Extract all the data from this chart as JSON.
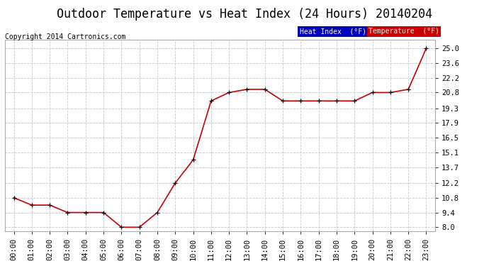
{
  "title": "Outdoor Temperature vs Heat Index (24 Hours) 20140204",
  "copyright": "Copyright 2014 Cartronics.com",
  "background_color": "#ffffff",
  "plot_background": "#ffffff",
  "grid_color": "#c8c8c8",
  "x_labels": [
    "00:00",
    "01:00",
    "02:00",
    "03:00",
    "04:00",
    "05:00",
    "06:00",
    "07:00",
    "08:00",
    "09:00",
    "10:00",
    "11:00",
    "12:00",
    "13:00",
    "14:00",
    "15:00",
    "16:00",
    "17:00",
    "18:00",
    "19:00",
    "20:00",
    "21:00",
    "22:00",
    "23:00"
  ],
  "y_ticks": [
    8.0,
    9.4,
    10.8,
    12.2,
    13.7,
    15.1,
    16.5,
    17.9,
    19.3,
    20.8,
    22.2,
    23.6,
    25.0
  ],
  "ylim": [
    7.6,
    25.8
  ],
  "temperature_data": [
    10.8,
    10.1,
    10.1,
    9.4,
    9.4,
    9.4,
    8.0,
    8.0,
    9.4,
    12.2,
    14.4,
    20.0,
    20.8,
    21.1,
    21.1,
    20.0,
    20.0,
    20.0,
    20.0,
    20.0,
    20.8,
    20.8,
    21.1,
    25.0
  ],
  "line_color": "#cc0000",
  "legend_heat_bg": "#0000bb",
  "legend_temp_bg": "#cc0000",
  "legend_text_color": "#ffffff",
  "legend_heat_label": "Heat Index  (°F)",
  "legend_temp_label": "Temperature  (°F)",
  "title_fontsize": 12,
  "tick_fontsize": 7.5,
  "copyright_fontsize": 7.0
}
